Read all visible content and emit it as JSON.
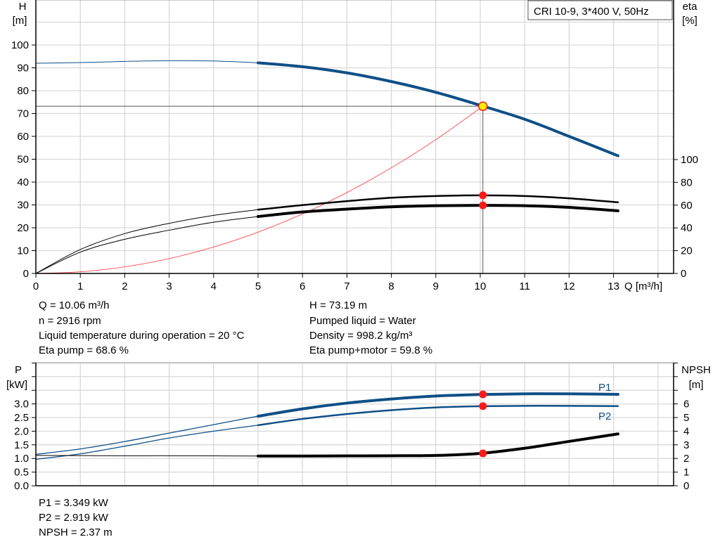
{
  "title": "CRI 10-9, 3*400 V, 50Hz",
  "colors": {
    "head": "#0f4f86",
    "eta": "#000000",
    "system": "#ff3030",
    "point": "#ff1a1a",
    "op_fill": "#ffee00",
    "power": "#0f4f86",
    "npsh": "#000000",
    "grid": "#d9d9d9"
  },
  "chart_data": [
    {
      "type": "line",
      "xlabel": "Q [m³/h]",
      "ylabel_left": [
        "H",
        "[m]"
      ],
      "ylabel_right": [
        "eta",
        "[%]"
      ],
      "x_ticks": [
        0,
        1,
        2,
        3,
        4,
        5,
        6,
        7,
        8,
        9,
        10,
        11,
        12,
        13
      ],
      "y_ticks_left": [
        0,
        10,
        20,
        30,
        40,
        50,
        60,
        70,
        80,
        90,
        100
      ],
      "y_ticks_right": [
        0,
        20,
        40,
        60,
        80,
        100
      ],
      "xlim": [
        0,
        14
      ],
      "ylim_left": [
        0,
        119.7
      ],
      "ylim_right": [
        0,
        240
      ],
      "grid": true,
      "series": [
        {
          "key": "H",
          "axis": "left",
          "x": [
            0,
            1,
            2,
            3,
            4,
            5,
            6,
            7,
            8,
            9,
            10,
            11,
            12,
            13.1
          ],
          "y": [
            92,
            92.3,
            92.8,
            93.1,
            93,
            92.2,
            90.5,
            87.8,
            84,
            79.3,
            73.6,
            67.5,
            60,
            51.5
          ]
        },
        {
          "key": "eta_pump",
          "axis": "right",
          "x": [
            0,
            1,
            2,
            3,
            4,
            5,
            6,
            7,
            8,
            9,
            10,
            11,
            12,
            13.1
          ],
          "y": [
            0,
            21,
            35,
            44,
            51,
            56,
            60,
            63.5,
            66.5,
            68,
            68.6,
            68,
            66,
            62.5
          ]
        },
        {
          "key": "eta_pump_motor",
          "axis": "right",
          "x": [
            0,
            1,
            2,
            3,
            4,
            5,
            6,
            7,
            8,
            9,
            10,
            11,
            12,
            13.1
          ],
          "y": [
            0,
            18.7,
            30,
            38,
            45,
            50,
            54,
            56.5,
            58.5,
            59.5,
            59.8,
            59.5,
            58,
            55
          ]
        },
        {
          "key": "system",
          "axis": "left",
          "x": [
            0,
            1,
            2,
            3,
            4,
            5,
            6,
            7,
            8,
            9,
            10.06
          ],
          "y": [
            0,
            0.72,
            2.89,
            6.51,
            11.57,
            18.08,
            26.03,
            35.43,
            46.28,
            58.57,
            73.19
          ]
        }
      ],
      "operating_point": {
        "Q": 10.06,
        "H": 73.19,
        "eta_pump": 68.6,
        "eta_pump_motor": 59.8
      }
    },
    {
      "type": "line",
      "ylabel_left": [
        "P",
        "[kW]"
      ],
      "ylabel_right": [
        "NPSH",
        "[m]"
      ],
      "y_ticks_left": [
        "0.0",
        "0.5",
        "1.0",
        "1.5",
        "2.0",
        "2.5",
        "3.0"
      ],
      "y_ticks_right": [
        0,
        1,
        2,
        3,
        4,
        5,
        6
      ],
      "xlim": [
        0,
        14
      ],
      "ylim_left": [
        0,
        4.5
      ],
      "ylim_right": [
        0,
        9
      ],
      "grid": true,
      "series": [
        {
          "key": "P1",
          "name": "P1",
          "axis": "left",
          "x": [
            0,
            1,
            2,
            3,
            4,
            5,
            6,
            7,
            8,
            9,
            10,
            11,
            12,
            13.1
          ],
          "y": [
            1.15,
            1.35,
            1.62,
            1.93,
            2.24,
            2.55,
            2.82,
            3.03,
            3.18,
            3.29,
            3.345,
            3.37,
            3.37,
            3.35
          ]
        },
        {
          "key": "P2",
          "name": "P2",
          "axis": "left",
          "x": [
            0,
            1,
            2,
            3,
            4,
            5,
            6,
            7,
            8,
            9,
            10,
            11,
            12,
            13.1
          ],
          "y": [
            0.97,
            1.17,
            1.45,
            1.75,
            2.0,
            2.22,
            2.45,
            2.63,
            2.77,
            2.87,
            2.915,
            2.93,
            2.93,
            2.92
          ]
        },
        {
          "key": "NPSH",
          "axis": "right",
          "x": [
            0,
            1,
            2,
            3,
            4,
            5,
            6,
            7,
            8,
            9,
            10,
            11,
            12,
            13.1
          ],
          "y": [
            2.22,
            2.21,
            2.2,
            2.2,
            2.19,
            2.18,
            2.18,
            2.19,
            2.2,
            2.22,
            2.37,
            2.75,
            3.25,
            3.8
          ]
        }
      ],
      "operating_point": {
        "Q": 10.06,
        "P1": 3.349,
        "P2": 2.919,
        "NPSH": 2.37
      }
    }
  ],
  "info": {
    "left": [
      "Q = 10.06 m³/h",
      "n = 2916 rpm",
      "Liquid temperature during operation = 20 °C",
      "Eta pump = 68.6 %"
    ],
    "right": [
      "H = 73.19 m",
      "Pumped liquid = Water",
      "Density = 998.2 kg/m³",
      "Eta pump+motor = 59.8 %"
    ],
    "bottom": [
      "P1 = 3.349 kW",
      "P2 = 2.919 kW",
      "NPSH = 2.37 m"
    ]
  }
}
